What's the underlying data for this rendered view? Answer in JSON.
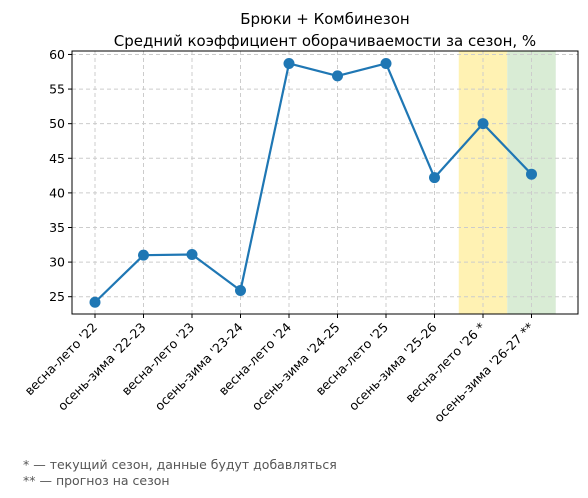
{
  "chart_data": {
    "type": "line",
    "title": "Брюки + Комбинезон",
    "subtitle": "Средний коэффициент оборачиваемости за сезон, %",
    "xlabel": "",
    "ylabel": "",
    "categories": [
      "весна-лето '22",
      "осень-зима '22-23",
      "весна-лето '23",
      "осень-зима '23-24",
      "весна-лето '24",
      "осень-зима '24-25",
      "весна-лето '25",
      "осень-зима '25-26",
      "весна-лето '26 *",
      "осень-зима '26-27 **"
    ],
    "series": [
      {
        "values": [
          24.2,
          31.0,
          31.1,
          25.9,
          58.7,
          56.9,
          58.7,
          42.2,
          50.0,
          42.7
        ],
        "color": "#1f77b4"
      }
    ],
    "ylim": [
      22.5,
      60.5
    ],
    "yticks": [
      25,
      30,
      35,
      40,
      45,
      50,
      55,
      60
    ],
    "grid": true,
    "highlights": [
      {
        "category": "весна-лето '26 *",
        "color": "#fff2b3"
      },
      {
        "category": "осень-зима '26-27 **",
        "color": "#d9ecd5"
      }
    ]
  },
  "notes": {
    "line1": "* — текущий сезон, данные будут добавляться",
    "line2": "** — прогноз на сезон"
  }
}
